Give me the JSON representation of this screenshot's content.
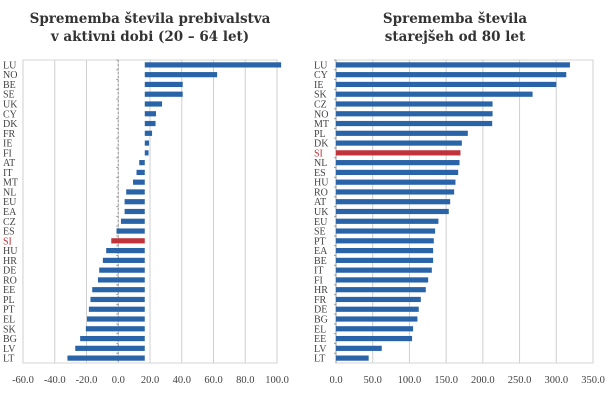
{
  "chart_data": [
    {
      "type": "bar",
      "orientation": "horizontal",
      "title": [
        "Sprememba števila prebivalstva",
        "v aktivni dobi (20 – 64 let)"
      ],
      "xlabel": "",
      "ylabel": "",
      "xlim": [
        -60,
        100
      ],
      "xticks": [
        "-60.0",
        "-40.0",
        "-20.0",
        "0.0",
        "20.0",
        "40.0",
        "60.0",
        "80.0",
        "100.0"
      ],
      "xtick_values": [
        -60,
        -40,
        -20,
        0,
        20,
        40,
        60,
        80,
        100
      ],
      "grid": "vertical",
      "bar_baseline": 16.7,
      "note": "bars are drawn from a baseline near 16.7 on the axis; values are the axis positions of the bar ends",
      "categories": [
        "LU",
        "NO",
        "BE",
        "SE",
        "UK",
        "CY",
        "DK",
        "FR",
        "IE",
        "FI",
        "AT",
        "IT",
        "MT",
        "NL",
        "EU",
        "EA",
        "CZ",
        "ES",
        "SI",
        "HU",
        "HR",
        "DE",
        "RO",
        "EE",
        "PL",
        "PT",
        "EL",
        "SK",
        "BG",
        "LV",
        "LT"
      ],
      "values": [
        102.6,
        62.3,
        40.6,
        40.6,
        27.6,
        23.8,
        23.5,
        21.3,
        19.4,
        19.1,
        13.2,
        11.5,
        9.3,
        5.0,
        4.0,
        4.0,
        1.7,
        -1.1,
        -4.4,
        -7.6,
        -9.7,
        -12.0,
        -12.8,
        -16.4,
        -17.5,
        -18.5,
        -19.7,
        -20.4,
        -24.0,
        -27.1,
        -32.0
      ],
      "highlight": "SI",
      "colors": {
        "bar": "#2a64a8",
        "highlight": "#c0333a",
        "grid": "#cfcfcf"
      }
    },
    {
      "type": "bar",
      "orientation": "horizontal",
      "title": [
        "Sprememba števila",
        "starejšeh od 80 let"
      ],
      "xlabel": "",
      "ylabel": "",
      "xlim": [
        0,
        350
      ],
      "xticks": [
        "0.0",
        "50.0",
        "100.0",
        "150.0",
        "200.0",
        "250.0",
        "300.0",
        "350.0"
      ],
      "xtick_values": [
        0,
        50,
        100,
        150,
        200,
        250,
        300,
        350
      ],
      "grid": "vertical",
      "bar_baseline": 0,
      "categories": [
        "LU",
        "CY",
        "IE",
        "SK",
        "CZ",
        "NO",
        "MT",
        "PL",
        "DK",
        "SI",
        "NL",
        "ES",
        "HU",
        "RO",
        "AT",
        "UK",
        "EU",
        "SE",
        "PT",
        "EA",
        "BE",
        "IT",
        "FI",
        "HR",
        "FR",
        "DE",
        "BG",
        "EL",
        "EE",
        "LV",
        "LT"
      ],
      "values": [
        318.6,
        313.6,
        300.0,
        267.7,
        213.2,
        213.2,
        212.7,
        179.5,
        171.4,
        169.5,
        168.2,
        166.4,
        162.7,
        160.9,
        155.5,
        153.6,
        139.5,
        135.0,
        133.2,
        132.3,
        132.3,
        130.5,
        125.5,
        122.3,
        115.5,
        112.7,
        110.9,
        105.0,
        103.6,
        62.3,
        44.5
      ],
      "highlight": "SI",
      "colors": {
        "bar": "#2a64a8",
        "highlight": "#c0333a",
        "grid": "#cfcfcf"
      }
    }
  ]
}
